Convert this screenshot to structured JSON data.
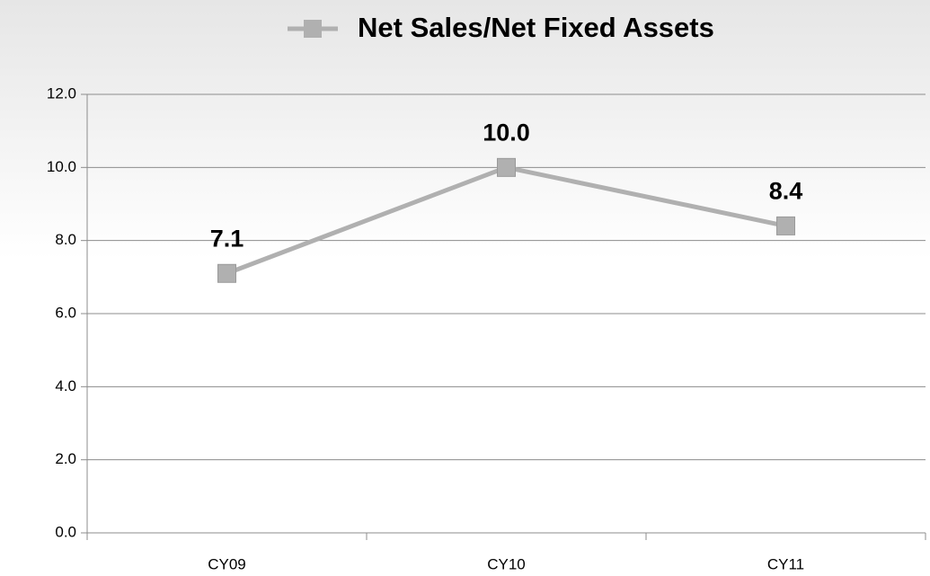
{
  "chart_data": {
    "type": "line",
    "categories": [
      "CY09",
      "CY10",
      "CY11"
    ],
    "series": [
      {
        "name": "Net Sales/Net Fixed Assets",
        "color": "#b0b0b0",
        "values": [
          7.1,
          10.0,
          8.4
        ],
        "value_labels": [
          "7.1",
          "10.0",
          "8.4"
        ]
      }
    ],
    "ylim": [
      0,
      12
    ],
    "yticks": [
      {
        "value": 0,
        "label": "0.0"
      },
      {
        "value": 2,
        "label": "2.0"
      },
      {
        "value": 4,
        "label": "4.0"
      },
      {
        "value": 6,
        "label": "6.0"
      },
      {
        "value": 8,
        "label": "8.0"
      },
      {
        "value": 10,
        "label": "10.0"
      },
      {
        "value": 12,
        "label": "12.0"
      }
    ],
    "grid": true,
    "legend": "top"
  }
}
